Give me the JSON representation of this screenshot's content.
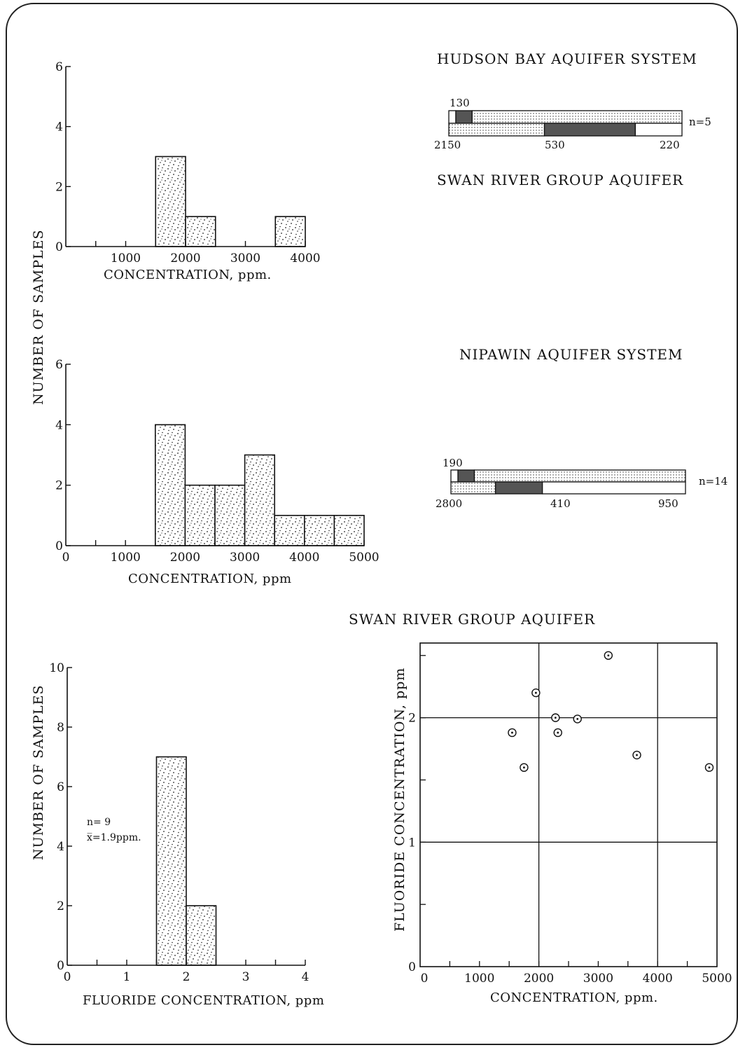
{
  "panel_titles": {
    "hudson_bay": "HUDSON BAY AQUIFER SYSTEM",
    "swan_river_top": "SWAN RIVER GROUP AQUIFER",
    "nipawin": "NIPAWIN AQUIFER SYSTEM",
    "swan_river_bottom": "SWAN RIVER GROUP AQUIFER"
  },
  "shared_ylabel": "NUMBER OF SAMPLES",
  "colors": {
    "ink": "#111111",
    "dark_fill": "#555555",
    "stipple": "#222222",
    "paper": "#ffffff"
  },
  "chart_data": [
    {
      "id": "hist_top",
      "type": "bar",
      "xlabel": "CONCENTRATION, ppm.",
      "ylabel": "NUMBER OF SAMPLES",
      "xticks": [
        "1000",
        "2000",
        "3000",
        "4000"
      ],
      "yticks": [
        "0",
        "2",
        "4",
        "6"
      ],
      "xlim": [
        0,
        4000
      ],
      "ylim": [
        0,
        6
      ],
      "bins": [
        {
          "x0": 1500,
          "x1": 2000,
          "count": 3
        },
        {
          "x0": 2000,
          "x1": 2500,
          "count": 1
        },
        {
          "x0": 3500,
          "x1": 4000,
          "count": 1
        }
      ]
    },
    {
      "id": "hist_middle",
      "type": "bar",
      "xlabel": "CONCENTRATION, ppm",
      "xticks": [
        "0",
        "1000",
        "2000",
        "3000",
        "4000",
        "5000"
      ],
      "yticks": [
        "0",
        "2",
        "4",
        "6"
      ],
      "xlim": [
        0,
        5000
      ],
      "ylim": [
        0,
        6
      ],
      "bins": [
        {
          "x0": 1500,
          "x1": 2000,
          "count": 4
        },
        {
          "x0": 2000,
          "x1": 2500,
          "count": 2
        },
        {
          "x0": 2500,
          "x1": 3000,
          "count": 2
        },
        {
          "x0": 3000,
          "x1": 3500,
          "count": 3
        },
        {
          "x0": 3500,
          "x1": 4000,
          "count": 1
        },
        {
          "x0": 4000,
          "x1": 4500,
          "count": 1
        },
        {
          "x0": 4500,
          "x1": 5000,
          "count": 1
        }
      ]
    },
    {
      "id": "hist_bottom",
      "type": "bar",
      "xlabel": "FLUORIDE CONCENTRATION, ppm",
      "ylabel": "NUMBER OF SAMPLES",
      "xticks": [
        "0",
        "1",
        "2",
        "3",
        "4"
      ],
      "yticks": [
        "0",
        "2",
        "4",
        "6",
        "8",
        "10"
      ],
      "xlim": [
        0,
        4
      ],
      "ylim": [
        0,
        10
      ],
      "bins": [
        {
          "x0": 1.5,
          "x1": 2.0,
          "count": 7
        },
        {
          "x0": 2.0,
          "x1": 2.5,
          "count": 2
        }
      ],
      "annotation": {
        "n": "n= 9",
        "mean": "x̅=1.9ppm."
      }
    },
    {
      "id": "scatter_bottom",
      "type": "scatter",
      "title": "SWAN RIVER GROUP AQUIFER",
      "xlabel": "CONCENTRATION, ppm.",
      "ylabel": "FLUORIDE CONCENTRATION, ppm",
      "xticks": [
        "0",
        "1000",
        "2000",
        "3000",
        "4000",
        "5000"
      ],
      "yticks": [
        "0",
        "1",
        "2"
      ],
      "xlim": [
        0,
        5000
      ],
      "ylim": [
        0,
        2.6
      ],
      "grid_x": [
        2000,
        4000
      ],
      "grid_y": [
        1,
        2
      ],
      "points": [
        {
          "x": 1550,
          "y": 1.88
        },
        {
          "x": 1750,
          "y": 1.6
        },
        {
          "x": 1950,
          "y": 2.2
        },
        {
          "x": 2280,
          "y": 2.0
        },
        {
          "x": 2320,
          "y": 1.88
        },
        {
          "x": 2650,
          "y": 1.99
        },
        {
          "x": 3170,
          "y": 2.5
        },
        {
          "x": 3650,
          "y": 1.7
        },
        {
          "x": 4870,
          "y": 1.6
        }
      ]
    },
    {
      "id": "bars_hudson",
      "type": "bar",
      "n_label": "n=5",
      "top_value_label": "130",
      "bottom_value_labels": [
        "2150",
        "530",
        "220"
      ],
      "top_bar_fractions": {
        "white": 0.03,
        "dark": 0.07,
        "stipple": 0.9
      },
      "bottom_bar_fractions": {
        "stipple": 0.41,
        "dark": 0.39,
        "white": 0.2
      }
    },
    {
      "id": "bars_nipawin",
      "type": "bar",
      "n_label": "n=14",
      "top_value_label": "190",
      "bottom_value_labels": [
        "2800",
        "410",
        "950"
      ],
      "top_bar_fractions": {
        "white": 0.03,
        "dark": 0.07,
        "stipple": 0.9
      },
      "bottom_bar_fractions": {
        "stipple": 0.19,
        "dark": 0.2,
        "white": 0.61
      }
    }
  ]
}
